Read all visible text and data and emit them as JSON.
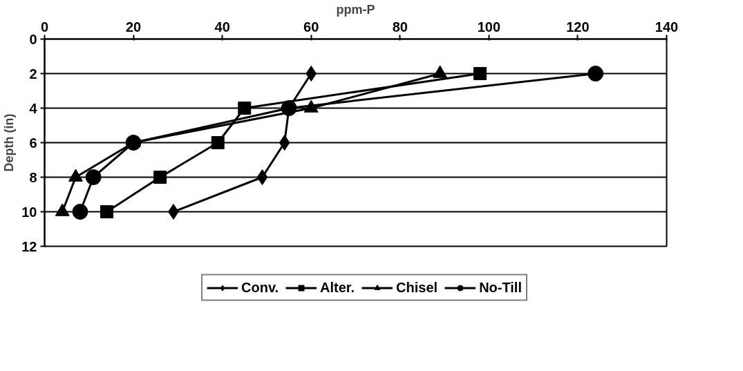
{
  "chart_data": {
    "type": "line",
    "xlabel": "ppm-P",
    "ylabel": "Depth (in)",
    "xlim": [
      0,
      140
    ],
    "xticks": [
      0,
      20,
      40,
      60,
      80,
      100,
      120,
      140
    ],
    "ylim": [
      12,
      0
    ],
    "yticks": [
      0,
      2,
      4,
      6,
      8,
      10,
      12
    ],
    "grid": "y",
    "legend": "bottom",
    "series": [
      {
        "name": "Conv.",
        "color": "#000000",
        "marker": "diamond",
        "x": [
          60,
          55,
          54,
          49,
          29
        ],
        "values": [
          2,
          4,
          6,
          8,
          10
        ]
      },
      {
        "name": "Alter.",
        "color": "#000000",
        "marker": "square",
        "x": [
          98,
          45,
          39,
          26,
          14
        ],
        "values": [
          2,
          4,
          6,
          8,
          10
        ]
      },
      {
        "name": "Chisel",
        "color": "#000000",
        "marker": "triangle",
        "x": [
          89,
          60,
          20,
          7,
          4
        ],
        "values": [
          2,
          4,
          6,
          8,
          10
        ]
      },
      {
        "name": "No-Till",
        "color": "#000000",
        "marker": "circle",
        "x": [
          124,
          55,
          20,
          11,
          8
        ],
        "values": [
          2,
          4,
          6,
          8,
          10
        ]
      }
    ]
  }
}
